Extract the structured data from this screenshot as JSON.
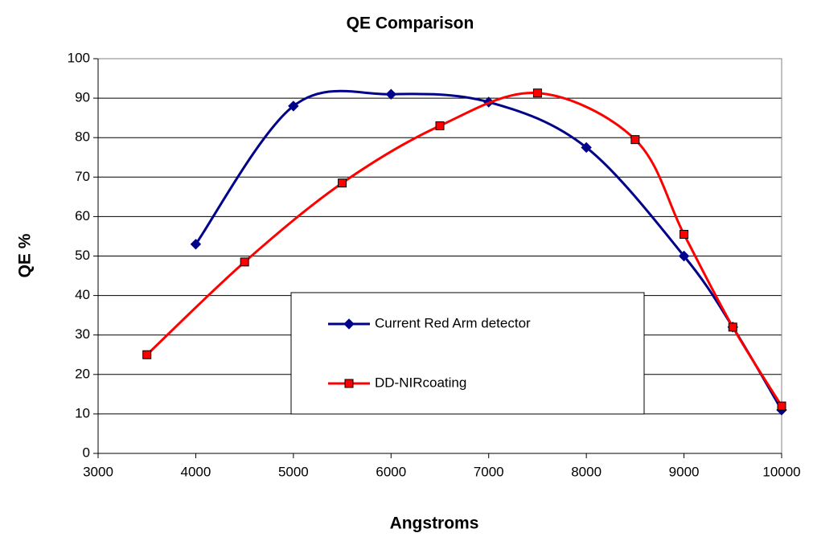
{
  "chart_data": {
    "type": "line",
    "title": "QE Comparison",
    "x_label": "Angstroms",
    "y_label": "QE %",
    "series": [
      {
        "name": "Current Red Arm detector",
        "color": "#00008b",
        "marker": "diamond",
        "x": [
          4000,
          5000,
          6000,
          7000,
          8000,
          9000,
          9500,
          10000
        ],
        "values": [
          53,
          88,
          91,
          89,
          77.5,
          50,
          32,
          11
        ]
      },
      {
        "name": "DD-NIRcoating",
        "color": "#ff0000",
        "marker": "square",
        "x": [
          3500,
          4500,
          5500,
          6500,
          7500,
          8500,
          9000,
          9500,
          10000
        ],
        "values": [
          25,
          48.5,
          68.5,
          83,
          91.3,
          79.5,
          55.5,
          32,
          12
        ]
      }
    ],
    "xlim": [
      3000,
      10000
    ],
    "xticks": [
      3000,
      4000,
      5000,
      6000,
      7000,
      8000,
      9000,
      10000
    ],
    "ylim": [
      0,
      100
    ],
    "yticks": [
      0,
      10,
      20,
      30,
      40,
      50,
      60,
      70,
      80,
      90,
      100
    ],
    "grid": true,
    "smooth": true
  }
}
